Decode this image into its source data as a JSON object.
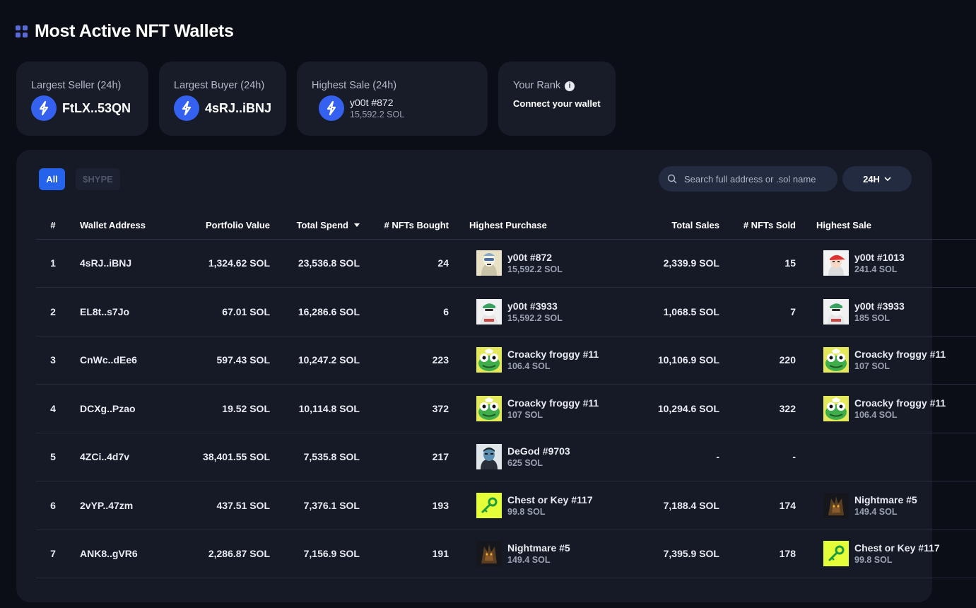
{
  "page": {
    "title": "Most Active NFT Wallets"
  },
  "cards": {
    "largest_seller": {
      "label": "Largest Seller (24h)",
      "value": "FtLX..53QN"
    },
    "largest_buyer": {
      "label": "Largest Buyer (24h)",
      "value": "4sRJ..iBNJ"
    },
    "highest_sale": {
      "label": "Highest Sale (24h)",
      "nft_name": "y00t #872",
      "price": "15,592.2 SOL"
    },
    "your_rank": {
      "label": "Your Rank",
      "value": "Connect your wallet"
    }
  },
  "filters": {
    "all": "All",
    "hype": "$HYPE"
  },
  "search": {
    "placeholder": "Search full address or .sol name"
  },
  "period": {
    "label": "24H"
  },
  "table": {
    "headers": {
      "rank": "#",
      "wallet": "Wallet Address",
      "portfolio": "Portfolio Value",
      "spend": "Total Spend",
      "bought": "# NFTs Bought",
      "highest_purchase": "Highest Purchase",
      "sales": "Total Sales",
      "sold": "# NFTs Sold",
      "highest_sale": "Highest Sale"
    },
    "rows": [
      {
        "rank": "1",
        "wallet": "4sRJ..iBNJ",
        "portfolio": "1,324.62 SOL",
        "spend": "23,536.8 SOL",
        "bought": "24",
        "hp_icon": "y00t-icon",
        "hp_name": "y00t #872",
        "hp_price": "15,592.2 SOL",
        "sales": "2,339.9 SOL",
        "sold": "15",
        "hs_icon": "y00t-red-cap-icon",
        "hs_name": "y00t #1013",
        "hs_price": "241.4 SOL"
      },
      {
        "rank": "2",
        "wallet": "EL8t..s7Jo",
        "portfolio": "67.01 SOL",
        "spend": "16,286.6 SOL",
        "bought": "6",
        "hp_icon": "y00t-green-cap-icon",
        "hp_name": "y00t #3933",
        "hp_price": "15,592.2 SOL",
        "sales": "1,068.5 SOL",
        "sold": "7",
        "hs_icon": "y00t-green-cap-icon",
        "hs_name": "y00t #3933",
        "hs_price": "185 SOL"
      },
      {
        "rank": "3",
        "wallet": "CnWc..dEe6",
        "portfolio": "597.43 SOL",
        "spend": "10,247.2 SOL",
        "bought": "223",
        "hp_icon": "frog-icon",
        "hp_name": "Croacky froggy #11",
        "hp_price": "106.4 SOL",
        "sales": "10,106.9 SOL",
        "sold": "220",
        "hs_icon": "frog-icon",
        "hs_name": "Croacky froggy #11",
        "hs_price": "107 SOL"
      },
      {
        "rank": "4",
        "wallet": "DCXg..Pzao",
        "portfolio": "19.52 SOL",
        "spend": "10,114.8 SOL",
        "bought": "372",
        "hp_icon": "frog-icon",
        "hp_name": "Croacky froggy #11",
        "hp_price": "107 SOL",
        "sales": "10,294.6 SOL",
        "sold": "322",
        "hs_icon": "frog-icon",
        "hs_name": "Croacky froggy #11",
        "hs_price": "106.4 SOL"
      },
      {
        "rank": "5",
        "wallet": "4ZCi..4d7v",
        "portfolio": "38,401.55 SOL",
        "spend": "7,535.8 SOL",
        "bought": "217",
        "hp_icon": "degod-icon",
        "hp_name": "DeGod #9703",
        "hp_price": "625 SOL",
        "sales": "-",
        "sold": "-",
        "hs_icon": "",
        "hs_name": "",
        "hs_price": ""
      },
      {
        "rank": "6",
        "wallet": "2vYP..47zm",
        "portfolio": "437.51 SOL",
        "spend": "7,376.1 SOL",
        "bought": "193",
        "hp_icon": "key-icon",
        "hp_name": "Chest or Key #117",
        "hp_price": "99.8 SOL",
        "sales": "7,188.4 SOL",
        "sold": "174",
        "hs_icon": "nightmare-icon",
        "hs_name": "Nightmare #5",
        "hs_price": "149.4 SOL"
      },
      {
        "rank": "7",
        "wallet": "ANK8..gVR6",
        "portfolio": "2,286.87 SOL",
        "spend": "7,156.9 SOL",
        "bought": "191",
        "hp_icon": "nightmare-icon",
        "hp_name": "Nightmare #5",
        "hp_price": "149.4 SOL",
        "sales": "7,395.9 SOL",
        "sold": "178",
        "hs_icon": "key-icon",
        "hs_name": "Chest or Key #117",
        "hs_price": "99.8 SOL"
      }
    ]
  }
}
